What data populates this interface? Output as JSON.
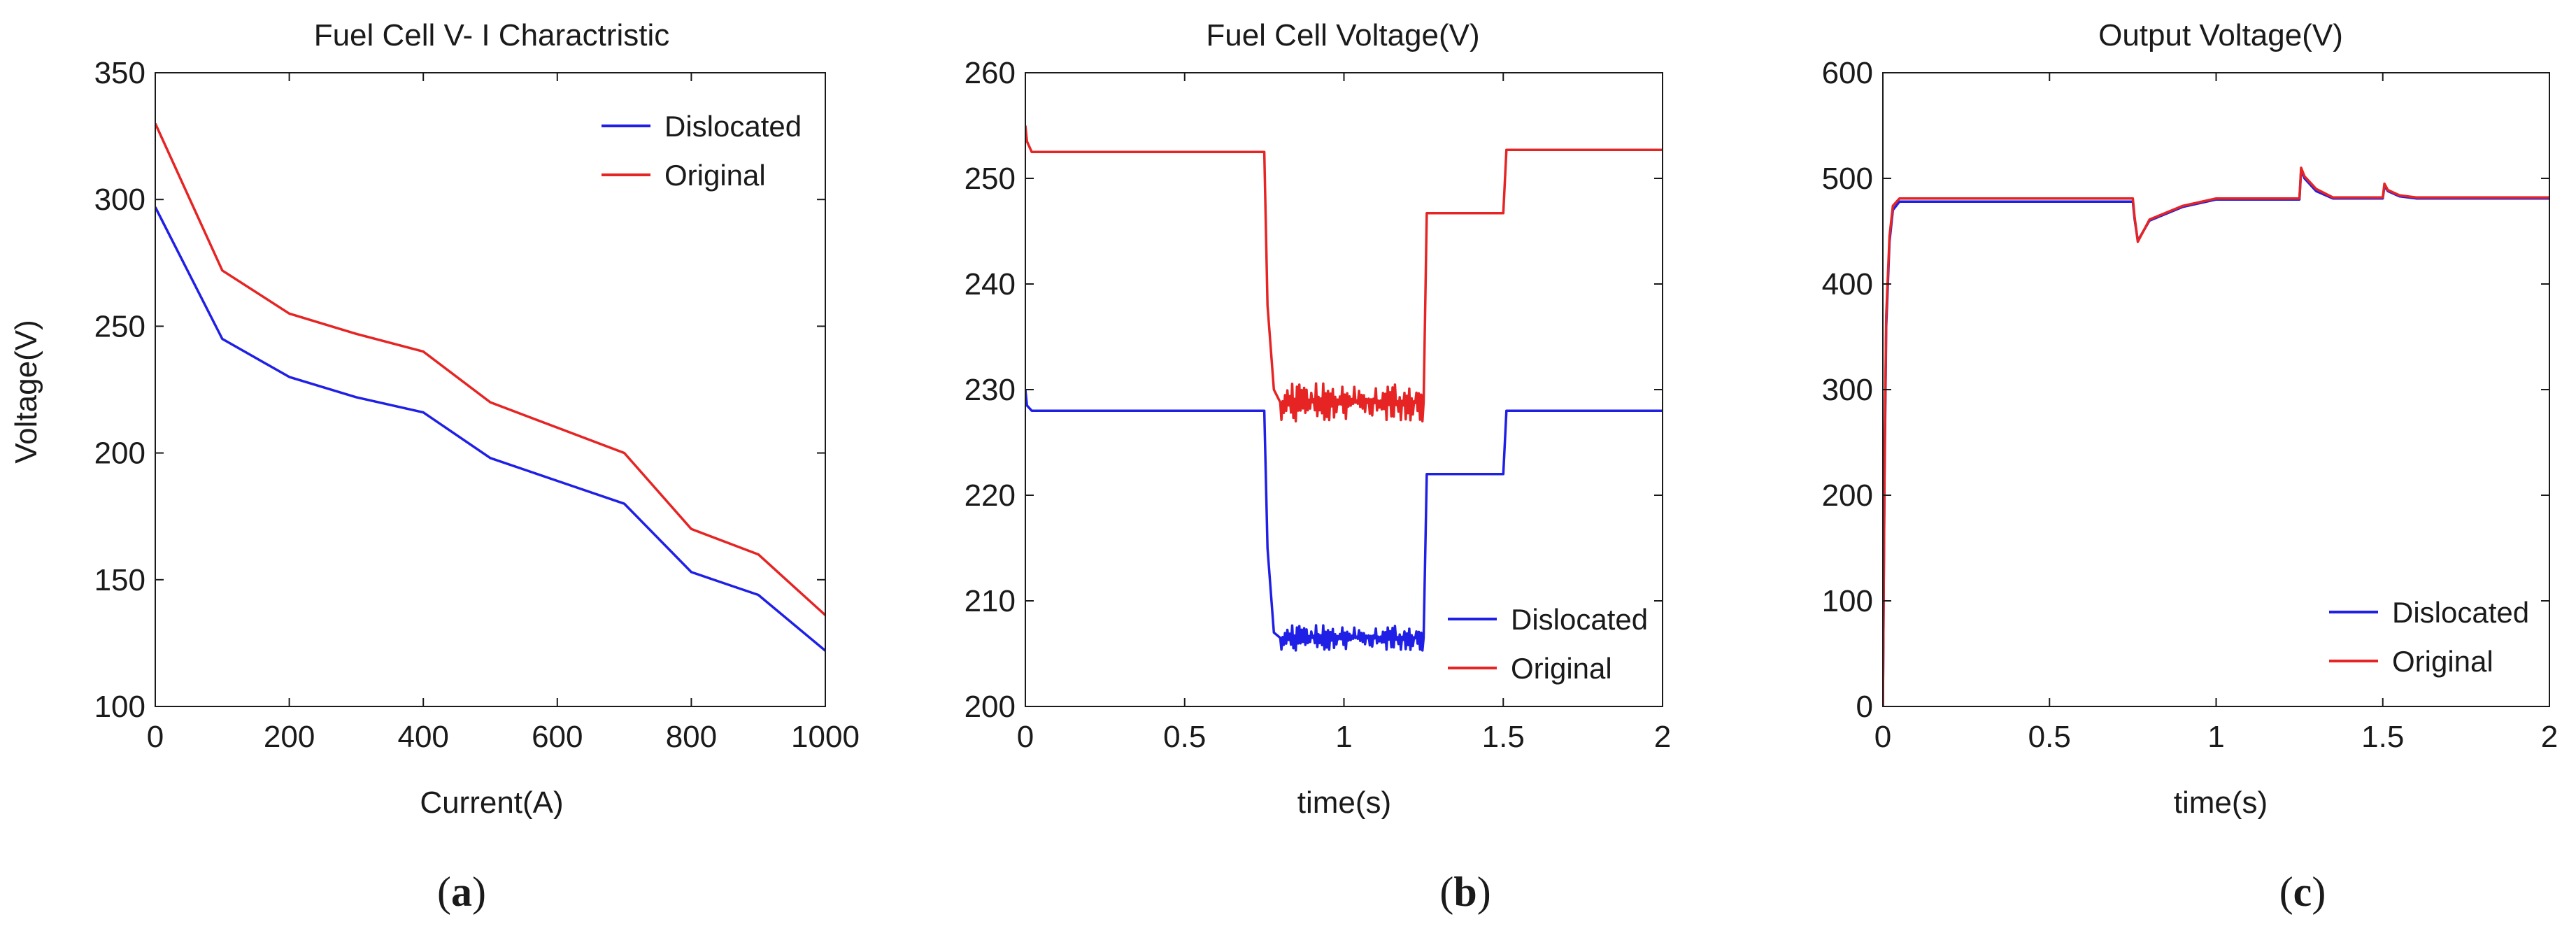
{
  "colors": {
    "dislocated": "#1f1fe6",
    "original": "#e62424",
    "axis": "#1a1a1a",
    "legend_box": "#1a1a1a"
  },
  "chart_data": [
    {
      "id": "a",
      "type": "line",
      "panel_label": "a",
      "title": "Fuel Cell V- I Charactristic",
      "xlabel": "Current(A)",
      "ylabel": "Voltage(V)",
      "xlim": [
        0,
        1000
      ],
      "ylim": [
        100,
        350
      ],
      "xticks": [
        0,
        200,
        400,
        600,
        800,
        1000
      ],
      "yticks": [
        100,
        150,
        200,
        250,
        300,
        350
      ],
      "legend_position": "top-right",
      "series": [
        {
          "name": "Dislocated",
          "color": "#1f1fe6",
          "x": [
            0,
            100,
            200,
            300,
            400,
            500,
            600,
            700,
            800,
            900,
            1000
          ],
          "y": [
            297,
            245,
            230,
            222,
            216,
            198,
            189,
            180,
            153,
            144,
            122
          ]
        },
        {
          "name": "Original",
          "color": "#e62424",
          "x": [
            0,
            100,
            200,
            300,
            400,
            500,
            600,
            700,
            800,
            900,
            1000
          ],
          "y": [
            330,
            272,
            255,
            247,
            240,
            220,
            210,
            200,
            170,
            160,
            136
          ]
        }
      ]
    },
    {
      "id": "b",
      "type": "line",
      "panel_label": "b",
      "title": "Fuel Cell Voltage(V)",
      "xlabel": "time(s)",
      "ylabel": "",
      "xlim": [
        0,
        2
      ],
      "ylim": [
        200,
        260
      ],
      "xticks": [
        0,
        0.5,
        1,
        1.5,
        2
      ],
      "xtick_labels": [
        "0",
        "0.5",
        "1",
        "1.5",
        "2"
      ],
      "yticks": [
        200,
        210,
        220,
        230,
        240,
        250,
        260
      ],
      "legend_position": "bottom-right",
      "series": [
        {
          "name": "Dislocated",
          "color": "#1f1fe6",
          "x": [
            0,
            0.005,
            0.02,
            0.75,
            0.76,
            0.78,
            0.8,
            1.25,
            1.26,
            1.5,
            1.51,
            2.0
          ],
          "y": [
            230,
            228.5,
            228,
            228,
            215,
            207,
            206.5,
            206.5,
            222,
            222,
            228,
            228
          ],
          "noise": [
            [
              0.78,
              1.25,
              1.2
            ]
          ]
        },
        {
          "name": "Original",
          "color": "#e62424",
          "x": [
            0,
            0.005,
            0.02,
            0.75,
            0.76,
            0.78,
            0.8,
            1.25,
            1.26,
            1.5,
            1.51,
            2.0
          ],
          "y": [
            255,
            253.5,
            252.5,
            252.5,
            238,
            230,
            228.8,
            228.8,
            246.7,
            246.7,
            252.7,
            252.7
          ],
          "noise": [
            [
              0.78,
              1.25,
              1.8
            ]
          ]
        }
      ]
    },
    {
      "id": "c",
      "type": "line",
      "panel_label": "c",
      "title": "Output Voltage(V)",
      "xlabel": "time(s)",
      "ylabel": "",
      "xlim": [
        0,
        2
      ],
      "ylim": [
        0,
        600
      ],
      "xticks": [
        0,
        0.5,
        1,
        1.5,
        2
      ],
      "xtick_labels": [
        "0",
        "0.5",
        "1",
        "1.5",
        "2"
      ],
      "yticks": [
        0,
        100,
        200,
        300,
        400,
        500,
        600
      ],
      "legend_position": "bottom-right",
      "series": [
        {
          "name": "Dislocated",
          "color": "#1f1fe6",
          "x": [
            0,
            0.005,
            0.01,
            0.02,
            0.03,
            0.05,
            0.08,
            0.75,
            0.755,
            0.765,
            0.8,
            0.9,
            1.0,
            1.25,
            1.255,
            1.265,
            1.3,
            1.35,
            1.5,
            1.505,
            1.515,
            1.55,
            1.6,
            2.0
          ],
          "y": [
            0,
            220,
            360,
            440,
            470,
            478,
            478,
            478,
            462,
            441,
            460,
            473,
            480,
            480,
            508,
            500,
            488,
            481,
            481,
            493,
            488,
            483,
            481,
            481
          ]
        },
        {
          "name": "Original",
          "color": "#e62424",
          "x": [
            0,
            0.005,
            0.01,
            0.02,
            0.03,
            0.05,
            0.08,
            0.75,
            0.755,
            0.765,
            0.8,
            0.9,
            1.0,
            1.25,
            1.255,
            1.265,
            1.3,
            1.35,
            1.5,
            1.505,
            1.515,
            1.55,
            1.6,
            2.0
          ],
          "y": [
            0,
            230,
            370,
            445,
            474,
            481,
            481,
            481,
            464,
            440,
            461,
            474,
            481,
            481,
            510,
            502,
            490,
            482,
            482,
            495,
            489,
            484,
            482,
            482
          ]
        }
      ]
    }
  ]
}
